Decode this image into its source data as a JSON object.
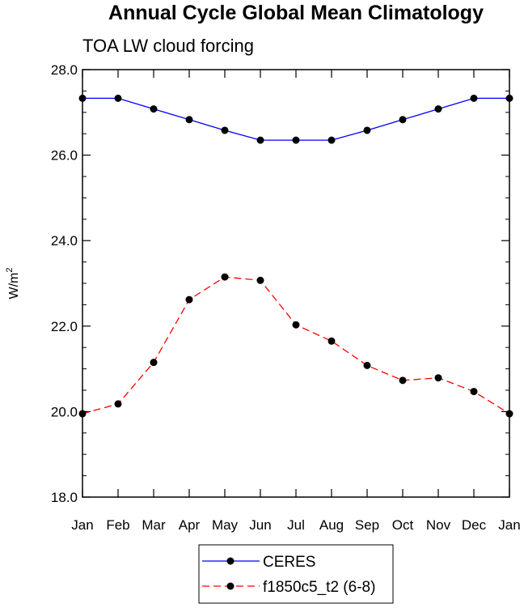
{
  "chart_data": {
    "type": "line",
    "title": "Annual Cycle Global Mean Climatology",
    "subtitle": "TOA LW cloud forcing",
    "xlabel": "",
    "ylabel": "W/m",
    "ylabel_superscript": "2",
    "ylim": [
      18.0,
      28.0
    ],
    "yticks": [
      "18.0",
      "20.0",
      "22.0",
      "24.0",
      "26.0",
      "28.0"
    ],
    "categories": [
      "Jan",
      "Feb",
      "Mar",
      "Apr",
      "May",
      "Jun",
      "Jul",
      "Aug",
      "Sep",
      "Oct",
      "Nov",
      "Dec",
      "Jan"
    ],
    "series": [
      {
        "name": "CERES",
        "color": "#0000ff",
        "dash": "solid",
        "values": [
          27.33,
          27.33,
          27.08,
          26.83,
          26.58,
          26.35,
          26.35,
          26.35,
          26.58,
          26.83,
          27.08,
          27.33,
          27.33
        ]
      },
      {
        "name": "f1850c5_t2 (6-8)",
        "color": "#ff0000",
        "dash": "dashed",
        "values": [
          19.95,
          20.18,
          21.15,
          22.62,
          23.15,
          23.07,
          22.03,
          21.65,
          21.08,
          20.73,
          20.79,
          20.47,
          19.95
        ]
      }
    ],
    "legend_position": "bottom-center"
  }
}
